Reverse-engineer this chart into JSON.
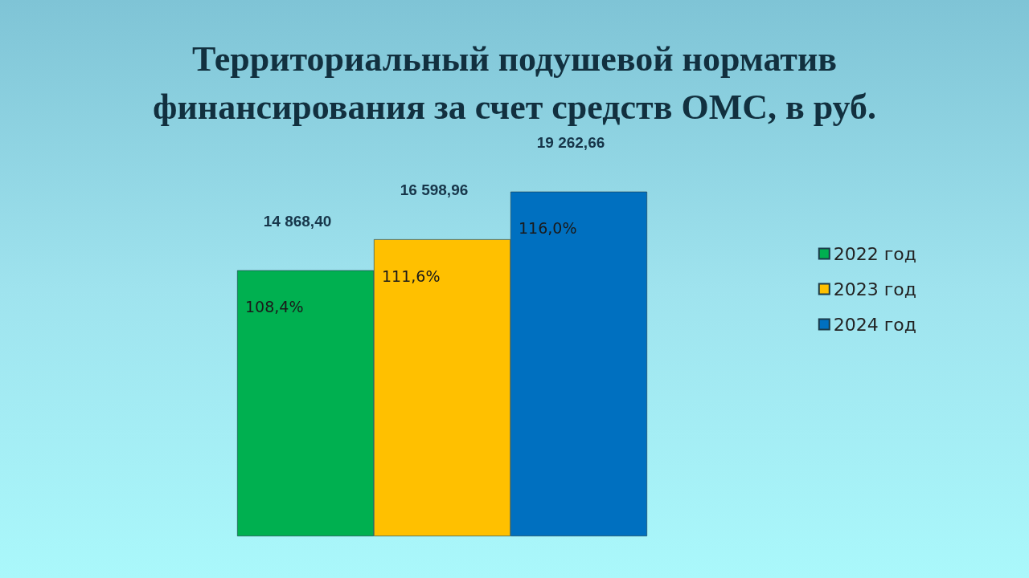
{
  "chart_data": {
    "type": "bar",
    "title": "Территориальный подушевой норматив\nфинансирования за счет средств ОМС, в руб.",
    "categories": [
      null
    ],
    "series": [
      {
        "name": "2022 год",
        "color": "#00b050",
        "values": [
          14868.4
        ],
        "value_labels": [
          "14 868,40"
        ]
      },
      {
        "name": "2023 год",
        "color": "#ffc000",
        "values": [
          16598.96
        ],
        "value_labels": [
          "16 598,96"
        ]
      },
      {
        "name": "2024 год",
        "color": "#0070c0",
        "values": [
          19262.66
        ],
        "value_labels": [
          "19 262,66"
        ]
      }
    ],
    "annotations": [
      "108,4%",
      "111,6%",
      "116,0%"
    ],
    "legend": "right"
  }
}
